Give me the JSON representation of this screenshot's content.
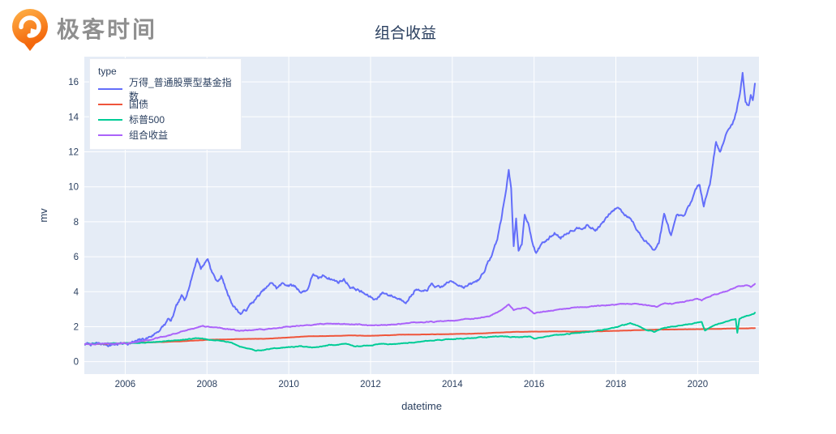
{
  "logo": {
    "text": "极客时间",
    "orange_light": "#FFAE3D",
    "orange_dark": "#F4690D",
    "text_color": "#8f8f8f"
  },
  "chart_data": {
    "type": "line",
    "title": "组合收益",
    "xlabel": "datetime",
    "ylabel": "mv",
    "xlim": [
      2005.0,
      2021.5
    ],
    "ylim": [
      -0.71,
      17.44
    ],
    "x_ticks": [
      2006,
      2008,
      2010,
      2012,
      2014,
      2016,
      2018,
      2020
    ],
    "y_ticks": [
      0,
      2,
      4,
      6,
      8,
      10,
      12,
      14,
      16
    ],
    "grid": true,
    "plot_bg": "#E5ECF6",
    "grid_color": "#ffffff",
    "text_color": "#2a3f5f",
    "legend": {
      "title": "type",
      "position": "top-left"
    },
    "series": [
      {
        "name": "万得_普通股票型基金指数",
        "color": "#636EFA",
        "noise": 0.09,
        "points": [
          [
            2005,
            1
          ],
          [
            2005.3,
            1.01
          ],
          [
            2005.6,
            0.97
          ],
          [
            2005.9,
            1.03
          ],
          [
            2006.1,
            1.08
          ],
          [
            2006.3,
            1.16
          ],
          [
            2006.5,
            1.3
          ],
          [
            2006.7,
            1.55
          ],
          [
            2006.9,
            1.95
          ],
          [
            2007,
            2.2
          ],
          [
            2007.06,
            2.45
          ],
          [
            2007.12,
            2.25
          ],
          [
            2007.25,
            3.1
          ],
          [
            2007.38,
            3.7
          ],
          [
            2007.45,
            3.5
          ],
          [
            2007.6,
            4.6
          ],
          [
            2007.76,
            5.95
          ],
          [
            2007.85,
            5.35
          ],
          [
            2008.02,
            5.9
          ],
          [
            2008.12,
            5.15
          ],
          [
            2008.25,
            4.55
          ],
          [
            2008.35,
            4.9
          ],
          [
            2008.5,
            3.9
          ],
          [
            2008.65,
            3.2
          ],
          [
            2008.82,
            2.75
          ],
          [
            2008.95,
            2.95
          ],
          [
            2009.1,
            3.35
          ],
          [
            2009.3,
            3.85
          ],
          [
            2009.45,
            4.2
          ],
          [
            2009.6,
            4.5
          ],
          [
            2009.7,
            4.2
          ],
          [
            2009.85,
            4.45
          ],
          [
            2010,
            4.4
          ],
          [
            2010.15,
            4.3
          ],
          [
            2010.3,
            4
          ],
          [
            2010.45,
            4.1
          ],
          [
            2010.6,
            5.05
          ],
          [
            2010.72,
            4.7
          ],
          [
            2010.85,
            4.9
          ],
          [
            2011,
            4.8
          ],
          [
            2011.2,
            4.55
          ],
          [
            2011.35,
            4.7
          ],
          [
            2011.5,
            4.3
          ],
          [
            2011.7,
            4.1
          ],
          [
            2011.9,
            3.8
          ],
          [
            2012.1,
            3.55
          ],
          [
            2012.3,
            3.95
          ],
          [
            2012.5,
            3.8
          ],
          [
            2012.7,
            3.6
          ],
          [
            2012.9,
            3.5
          ],
          [
            2013.1,
            4.15
          ],
          [
            2013.3,
            3.9
          ],
          [
            2013.5,
            4.4
          ],
          [
            2013.7,
            4.15
          ],
          [
            2013.9,
            4.55
          ],
          [
            2014.1,
            4.5
          ],
          [
            2014.3,
            4.3
          ],
          [
            2014.5,
            4.45
          ],
          [
            2014.65,
            4.7
          ],
          [
            2014.8,
            5.3
          ],
          [
            2014.95,
            6
          ],
          [
            2015.1,
            7
          ],
          [
            2015.2,
            8.2
          ],
          [
            2015.3,
            9.6
          ],
          [
            2015.38,
            10.95
          ],
          [
            2015.44,
            9.9
          ],
          [
            2015.5,
            6.7
          ],
          [
            2015.56,
            8.2
          ],
          [
            2015.62,
            6.3
          ],
          [
            2015.7,
            6.6
          ],
          [
            2015.77,
            8.35
          ],
          [
            2015.85,
            8
          ],
          [
            2015.95,
            7
          ],
          [
            2016.05,
            6.2
          ],
          [
            2016.2,
            6.8
          ],
          [
            2016.35,
            7
          ],
          [
            2016.5,
            7.35
          ],
          [
            2016.65,
            7.1
          ],
          [
            2016.8,
            7.4
          ],
          [
            2016.95,
            7.6
          ],
          [
            2017.1,
            7.7
          ],
          [
            2017.3,
            7.8
          ],
          [
            2017.5,
            7.5
          ],
          [
            2017.7,
            8
          ],
          [
            2017.9,
            8.55
          ],
          [
            2018.05,
            8.85
          ],
          [
            2018.2,
            8.45
          ],
          [
            2018.35,
            8.3
          ],
          [
            2018.5,
            7.6
          ],
          [
            2018.7,
            6.9
          ],
          [
            2018.85,
            6.6
          ],
          [
            2018.95,
            6.45
          ],
          [
            2019.05,
            6.8
          ],
          [
            2019.18,
            8.4
          ],
          [
            2019.35,
            7.2
          ],
          [
            2019.5,
            8.3
          ],
          [
            2019.65,
            8.2
          ],
          [
            2019.8,
            8.9
          ],
          [
            2019.95,
            9.8
          ],
          [
            2020.05,
            10.1
          ],
          [
            2020.15,
            9
          ],
          [
            2020.3,
            10.2
          ],
          [
            2020.45,
            12.6
          ],
          [
            2020.55,
            12
          ],
          [
            2020.7,
            13
          ],
          [
            2020.85,
            13.6
          ],
          [
            2020.95,
            14.3
          ],
          [
            2021.05,
            15.6
          ],
          [
            2021.1,
            16.55
          ],
          [
            2021.17,
            14.9
          ],
          [
            2021.25,
            14.6
          ],
          [
            2021.3,
            15.2
          ],
          [
            2021.35,
            15
          ],
          [
            2021.4,
            15.9
          ]
        ]
      },
      {
        "name": "国债",
        "color": "#EF553B",
        "noise": 0.006,
        "points": [
          [
            2005,
            1
          ],
          [
            2005.5,
            1.02
          ],
          [
            2006,
            1.06
          ],
          [
            2006.5,
            1.1
          ],
          [
            2007,
            1.13
          ],
          [
            2007.5,
            1.18
          ],
          [
            2008,
            1.25
          ],
          [
            2008.5,
            1.28
          ],
          [
            2009,
            1.3
          ],
          [
            2009.5,
            1.32
          ],
          [
            2010,
            1.38
          ],
          [
            2010.5,
            1.45
          ],
          [
            2011,
            1.47
          ],
          [
            2011.5,
            1.5
          ],
          [
            2012,
            1.48
          ],
          [
            2012.5,
            1.52
          ],
          [
            2013,
            1.55
          ],
          [
            2013.5,
            1.56
          ],
          [
            2014,
            1.58
          ],
          [
            2014.5,
            1.6
          ],
          [
            2015,
            1.65
          ],
          [
            2015.5,
            1.7
          ],
          [
            2016,
            1.72
          ],
          [
            2016.5,
            1.73
          ],
          [
            2017,
            1.72
          ],
          [
            2017.5,
            1.74
          ],
          [
            2018,
            1.76
          ],
          [
            2018.5,
            1.8
          ],
          [
            2019,
            1.83
          ],
          [
            2019.5,
            1.85
          ],
          [
            2020,
            1.86
          ],
          [
            2020.5,
            1.88
          ],
          [
            2021,
            1.9
          ],
          [
            2021.4,
            1.92
          ]
        ]
      },
      {
        "name": "标普500",
        "color": "#00CC96",
        "noise": 0.022,
        "points": [
          [
            2005,
            1
          ],
          [
            2005.5,
            1.02
          ],
          [
            2006,
            1.06
          ],
          [
            2006.5,
            1.08
          ],
          [
            2007,
            1.18
          ],
          [
            2007.5,
            1.28
          ],
          [
            2007.8,
            1.35
          ],
          [
            2008,
            1.25
          ],
          [
            2008.3,
            1.2
          ],
          [
            2008.6,
            1.1
          ],
          [
            2008.8,
            0.85
          ],
          [
            2009,
            0.75
          ],
          [
            2009.2,
            0.62
          ],
          [
            2009.4,
            0.7
          ],
          [
            2009.7,
            0.78
          ],
          [
            2010,
            0.83
          ],
          [
            2010.3,
            0.88
          ],
          [
            2010.5,
            0.8
          ],
          [
            2010.8,
            0.87
          ],
          [
            2011,
            0.95
          ],
          [
            2011.4,
            1
          ],
          [
            2011.6,
            0.88
          ],
          [
            2011.8,
            0.9
          ],
          [
            2012,
            0.95
          ],
          [
            2012.3,
            1.02
          ],
          [
            2012.6,
            1
          ],
          [
            2013,
            1.1
          ],
          [
            2013.4,
            1.2
          ],
          [
            2013.8,
            1.27
          ],
          [
            2014.2,
            1.32
          ],
          [
            2014.6,
            1.38
          ],
          [
            2014.85,
            1.4
          ],
          [
            2015.2,
            1.45
          ],
          [
            2015.6,
            1.4
          ],
          [
            2015.9,
            1.42
          ],
          [
            2016,
            1.3
          ],
          [
            2016.3,
            1.45
          ],
          [
            2016.6,
            1.52
          ],
          [
            2017,
            1.65
          ],
          [
            2017.4,
            1.72
          ],
          [
            2017.8,
            1.85
          ],
          [
            2018.1,
            2.05
          ],
          [
            2018.35,
            2.2
          ],
          [
            2018.6,
            2
          ],
          [
            2018.75,
            1.8
          ],
          [
            2018.95,
            1.7
          ],
          [
            2019.2,
            1.95
          ],
          [
            2019.5,
            2.05
          ],
          [
            2019.8,
            2.15
          ],
          [
            2020,
            2.25
          ],
          [
            2020.1,
            2.3
          ],
          [
            2020.18,
            1.78
          ],
          [
            2020.3,
            1.95
          ],
          [
            2020.5,
            2.15
          ],
          [
            2020.7,
            2.3
          ],
          [
            2020.93,
            2.45
          ],
          [
            2020.97,
            1.65
          ],
          [
            2021.02,
            2.45
          ],
          [
            2021.1,
            2.55
          ],
          [
            2021.25,
            2.65
          ],
          [
            2021.4,
            2.8
          ]
        ]
      },
      {
        "name": "组合收益",
        "color": "#AB63FA",
        "noise": 0.026,
        "points": [
          [
            2005,
            1
          ],
          [
            2005.5,
            1
          ],
          [
            2006,
            1.05
          ],
          [
            2006.5,
            1.2
          ],
          [
            2007,
            1.45
          ],
          [
            2007.5,
            1.8
          ],
          [
            2007.9,
            2.05
          ],
          [
            2008.2,
            1.95
          ],
          [
            2008.5,
            1.85
          ],
          [
            2008.8,
            1.75
          ],
          [
            2009.1,
            1.8
          ],
          [
            2009.5,
            1.85
          ],
          [
            2010,
            2
          ],
          [
            2010.5,
            2.08
          ],
          [
            2011,
            2.18
          ],
          [
            2011.5,
            2.15
          ],
          [
            2012,
            2.08
          ],
          [
            2012.5,
            2.1
          ],
          [
            2013,
            2.22
          ],
          [
            2013.5,
            2.27
          ],
          [
            2014,
            2.35
          ],
          [
            2014.5,
            2.45
          ],
          [
            2014.9,
            2.6
          ],
          [
            2015.2,
            2.95
          ],
          [
            2015.38,
            3.3
          ],
          [
            2015.5,
            2.95
          ],
          [
            2015.8,
            3.1
          ],
          [
            2016,
            2.75
          ],
          [
            2016.3,
            2.9
          ],
          [
            2016.7,
            3
          ],
          [
            2017,
            3.1
          ],
          [
            2017.5,
            3.17
          ],
          [
            2018,
            3.28
          ],
          [
            2018.4,
            3.32
          ],
          [
            2018.8,
            3.22
          ],
          [
            2019,
            3.15
          ],
          [
            2019.2,
            3.35
          ],
          [
            2019.4,
            3.3
          ],
          [
            2019.7,
            3.45
          ],
          [
            2020,
            3.6
          ],
          [
            2020.1,
            3.5
          ],
          [
            2020.4,
            3.85
          ],
          [
            2020.7,
            4
          ],
          [
            2021,
            4.3
          ],
          [
            2021.2,
            4.35
          ],
          [
            2021.3,
            4.25
          ],
          [
            2021.4,
            4.45
          ]
        ]
      }
    ]
  }
}
